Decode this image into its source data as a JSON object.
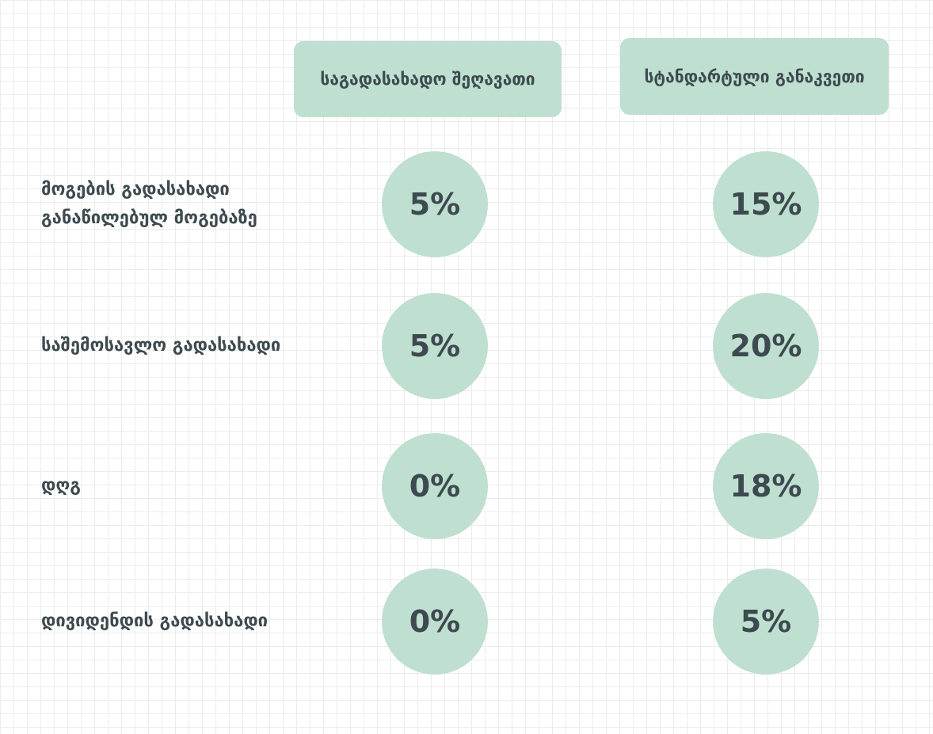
{
  "table": {
    "columns": [
      "საგადასახადო შეღავათი",
      "სტანდარტული განაკვეთი"
    ],
    "rows": [
      [
        "მოგების გადასახადი განაწილებულ მოგებაზე",
        "5%",
        "15%"
      ],
      [
        "საშემოსავლო გადასახადი",
        "5%",
        "20%"
      ],
      [
        "დღგ",
        "0%",
        "18%"
      ],
      [
        "დივიდენდის გადასახადი",
        "0%",
        "5%"
      ]
    ]
  }
}
